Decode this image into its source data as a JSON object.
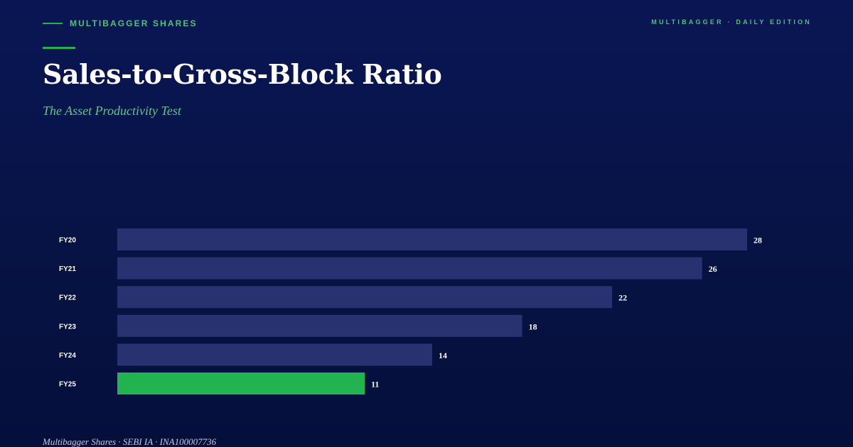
{
  "header": {
    "brand": "MULTIBAGGER SHARES",
    "edition": "MULTIBAGGER · DAILY EDITION"
  },
  "title": "Sales-to-Gross-Block Ratio",
  "subtitle": "The Asset Productivity Test",
  "footer": "Multibagger Shares · SEBI IA · INA100007736",
  "colors": {
    "background": "#071344",
    "accent": "#22b24f",
    "bar": "#283270",
    "highlight_bar": "#22b24f"
  },
  "chart_data": {
    "type": "bar",
    "orientation": "horizontal",
    "categories": [
      "FY20",
      "FY21",
      "FY22",
      "FY23",
      "FY24",
      "FY25"
    ],
    "values": [
      28,
      26,
      22,
      18,
      14,
      11
    ],
    "highlight": "FY25",
    "title": "",
    "xlabel": "",
    "ylabel": "",
    "xlim": [
      0,
      28
    ],
    "grid": false,
    "legend": "none"
  }
}
